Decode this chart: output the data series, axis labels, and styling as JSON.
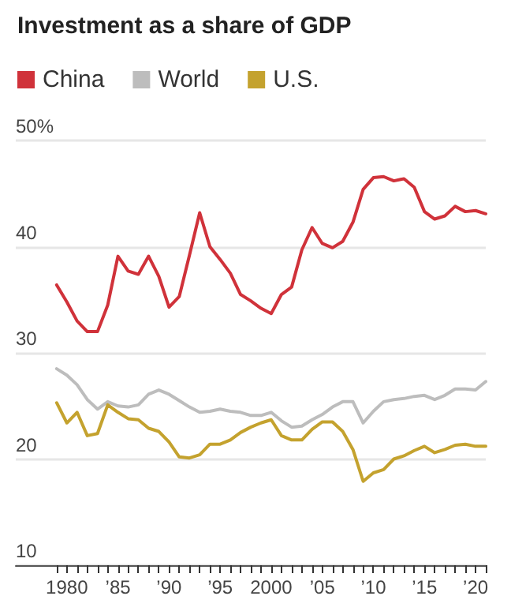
{
  "chart_data": {
    "type": "line",
    "title": "Investment as a share of GDP",
    "x": [
      1979,
      1980,
      1981,
      1982,
      1983,
      1984,
      1985,
      1986,
      1987,
      1988,
      1989,
      1990,
      1991,
      1992,
      1993,
      1994,
      1995,
      1996,
      1997,
      1998,
      1999,
      2000,
      2001,
      2002,
      2003,
      2004,
      2005,
      2006,
      2007,
      2008,
      2009,
      2010,
      2011,
      2012,
      2013,
      2014,
      2015,
      2016,
      2017,
      2018,
      2019,
      2020,
      2021
    ],
    "series": [
      {
        "name": "China",
        "color": "#d0323a",
        "values": [
          36.4,
          34.8,
          33.0,
          32.0,
          32.0,
          34.5,
          39.1,
          37.7,
          37.4,
          39.1,
          37.2,
          34.3,
          35.3,
          39.2,
          43.2,
          40.0,
          38.8,
          37.5,
          35.5,
          34.9,
          34.2,
          33.7,
          35.5,
          36.2,
          39.7,
          41.8,
          40.3,
          39.9,
          40.5,
          42.3,
          45.4,
          46.5,
          46.6,
          46.2,
          46.4,
          45.6,
          43.3,
          42.6,
          42.9,
          43.8,
          43.3,
          43.4,
          43.1
        ]
      },
      {
        "name": "World",
        "color": "#bdbdbd",
        "values": [
          28.5,
          27.9,
          27.0,
          25.6,
          24.7,
          25.4,
          25.0,
          24.9,
          25.1,
          26.1,
          26.5,
          26.1,
          25.5,
          24.9,
          24.4,
          24.5,
          24.7,
          24.5,
          24.4,
          24.1,
          24.1,
          24.4,
          23.6,
          23.0,
          23.1,
          23.7,
          24.2,
          24.9,
          25.4,
          25.4,
          23.4,
          24.5,
          25.4,
          25.6,
          25.7,
          25.9,
          26.0,
          25.6,
          26.0,
          26.6,
          26.6,
          26.5,
          27.3
        ]
      },
      {
        "name": "U.S.",
        "color": "#c4a22e",
        "values": [
          25.3,
          23.4,
          24.4,
          22.2,
          22.4,
          25.1,
          24.4,
          23.8,
          23.7,
          22.9,
          22.6,
          21.6,
          20.2,
          20.1,
          20.4,
          21.4,
          21.4,
          21.8,
          22.5,
          23.0,
          23.4,
          23.7,
          22.2,
          21.8,
          21.8,
          22.8,
          23.5,
          23.5,
          22.6,
          20.9,
          17.9,
          18.7,
          19.0,
          20.0,
          20.3,
          20.8,
          21.2,
          20.6,
          20.9,
          21.3,
          21.4,
          21.2,
          21.2
        ]
      }
    ],
    "xlim": [
      1975,
      2021
    ],
    "xticks": [
      {
        "value": 1979,
        "label": null
      },
      {
        "value": 1980,
        "label": "1980"
      },
      {
        "value": 1981,
        "label": null
      },
      {
        "value": 1982,
        "label": null
      },
      {
        "value": 1983,
        "label": null
      },
      {
        "value": 1984,
        "label": null
      },
      {
        "value": 1985,
        "label": "’85"
      },
      {
        "value": 1986,
        "label": null
      },
      {
        "value": 1987,
        "label": null
      },
      {
        "value": 1988,
        "label": null
      },
      {
        "value": 1989,
        "label": null
      },
      {
        "value": 1990,
        "label": "’90"
      },
      {
        "value": 1991,
        "label": null
      },
      {
        "value": 1992,
        "label": null
      },
      {
        "value": 1993,
        "label": null
      },
      {
        "value": 1994,
        "label": null
      },
      {
        "value": 1995,
        "label": "’95"
      },
      {
        "value": 1996,
        "label": null
      },
      {
        "value": 1997,
        "label": null
      },
      {
        "value": 1998,
        "label": null
      },
      {
        "value": 1999,
        "label": null
      },
      {
        "value": 2000,
        "label": "2000"
      },
      {
        "value": 2001,
        "label": null
      },
      {
        "value": 2002,
        "label": null
      },
      {
        "value": 2003,
        "label": null
      },
      {
        "value": 2004,
        "label": null
      },
      {
        "value": 2005,
        "label": "’05"
      },
      {
        "value": 2006,
        "label": null
      },
      {
        "value": 2007,
        "label": null
      },
      {
        "value": 2008,
        "label": null
      },
      {
        "value": 2009,
        "label": null
      },
      {
        "value": 2010,
        "label": "’10"
      },
      {
        "value": 2011,
        "label": null
      },
      {
        "value": 2012,
        "label": null
      },
      {
        "value": 2013,
        "label": null
      },
      {
        "value": 2014,
        "label": null
      },
      {
        "value": 2015,
        "label": "’15"
      },
      {
        "value": 2016,
        "label": null
      },
      {
        "value": 2017,
        "label": null
      },
      {
        "value": 2018,
        "label": null
      },
      {
        "value": 2019,
        "label": null
      },
      {
        "value": 2020,
        "label": "’20"
      },
      {
        "value": 2021,
        "label": null
      }
    ],
    "ylim": [
      10,
      50
    ],
    "yticks": [
      10,
      20,
      30,
      40,
      {
        "value": 50,
        "label": "50%"
      }
    ],
    "grid": "y",
    "legend": "top left",
    "marker": "none",
    "line_style": "solid"
  }
}
